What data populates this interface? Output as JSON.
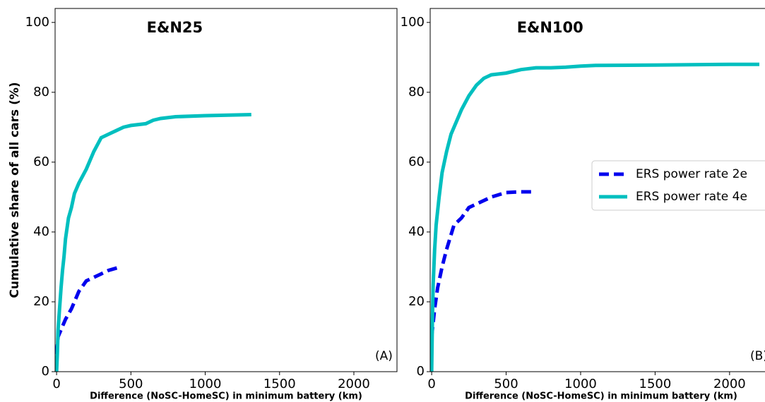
{
  "chart_data": [
    {
      "type": "line",
      "title": "E&N25",
      "annotation": "(A)",
      "x_label": "Difference (NoSC-HomeSC) in minimum battery (km)",
      "y_label": "Cumulative share of all cars (%)",
      "xlim": [
        -10,
        2290
      ],
      "ylim": [
        0,
        104
      ],
      "xticks": [
        0,
        500,
        1000,
        1500,
        2000
      ],
      "yticks": [
        0,
        20,
        40,
        60,
        80,
        100
      ],
      "series": [
        {
          "color": "#0000ee",
          "style": "dashed",
          "x": [
            0,
            10,
            30,
            60,
            100,
            150,
            200,
            250,
            300,
            350,
            430
          ],
          "values": [
            5,
            10,
            12,
            15,
            18,
            23,
            26,
            27,
            28,
            29,
            30
          ]
        },
        {
          "color": "#00bfbf",
          "style": "solid",
          "x": [
            0,
            5,
            10,
            20,
            30,
            40,
            50,
            60,
            80,
            100,
            120,
            150,
            200,
            250,
            300,
            350,
            400,
            450,
            500,
            600,
            650,
            700,
            800,
            1000,
            1310
          ],
          "values": [
            0,
            5,
            12,
            18,
            24,
            29,
            33,
            38,
            44,
            47,
            51,
            54,
            58,
            63,
            67,
            68,
            69,
            70,
            70.5,
            71,
            72,
            72.5,
            73,
            73.3,
            73.6
          ]
        }
      ]
    },
    {
      "type": "line",
      "title": "E&N100",
      "annotation": "(B)",
      "x_label": "Difference (NoSC-HomeSC) in minimum battery (km)",
      "xlim": [
        -10,
        2290
      ],
      "ylim": [
        0,
        104
      ],
      "xticks": [
        0,
        500,
        1000,
        1500,
        2000
      ],
      "yticks": [
        0,
        20,
        40,
        60,
        80,
        100
      ],
      "legend": "right",
      "series": [
        {
          "name": "ERS power rate 2e",
          "color": "#0000ee",
          "style": "dashed",
          "x": [
            0,
            20,
            40,
            70,
            100,
            150,
            200,
            250,
            300,
            400,
            500,
            600,
            700
          ],
          "values": [
            10,
            18,
            24,
            30,
            35,
            42,
            44,
            47,
            48,
            50,
            51.3,
            51.5,
            51.5
          ]
        },
        {
          "name": "ERS power rate 4e",
          "color": "#00bfbf",
          "style": "solid",
          "x": [
            0,
            5,
            10,
            20,
            30,
            50,
            70,
            100,
            130,
            170,
            200,
            250,
            300,
            350,
            400,
            500,
            600,
            700,
            800,
            900,
            1000,
            1100,
            1500,
            2000,
            2200
          ],
          "values": [
            0,
            15,
            25,
            35,
            42,
            50,
            57,
            63,
            68,
            72,
            75,
            79,
            82,
            84,
            85,
            85.5,
            86.5,
            87,
            87,
            87.2,
            87.5,
            87.7,
            87.8,
            88,
            88
          ]
        }
      ]
    }
  ]
}
